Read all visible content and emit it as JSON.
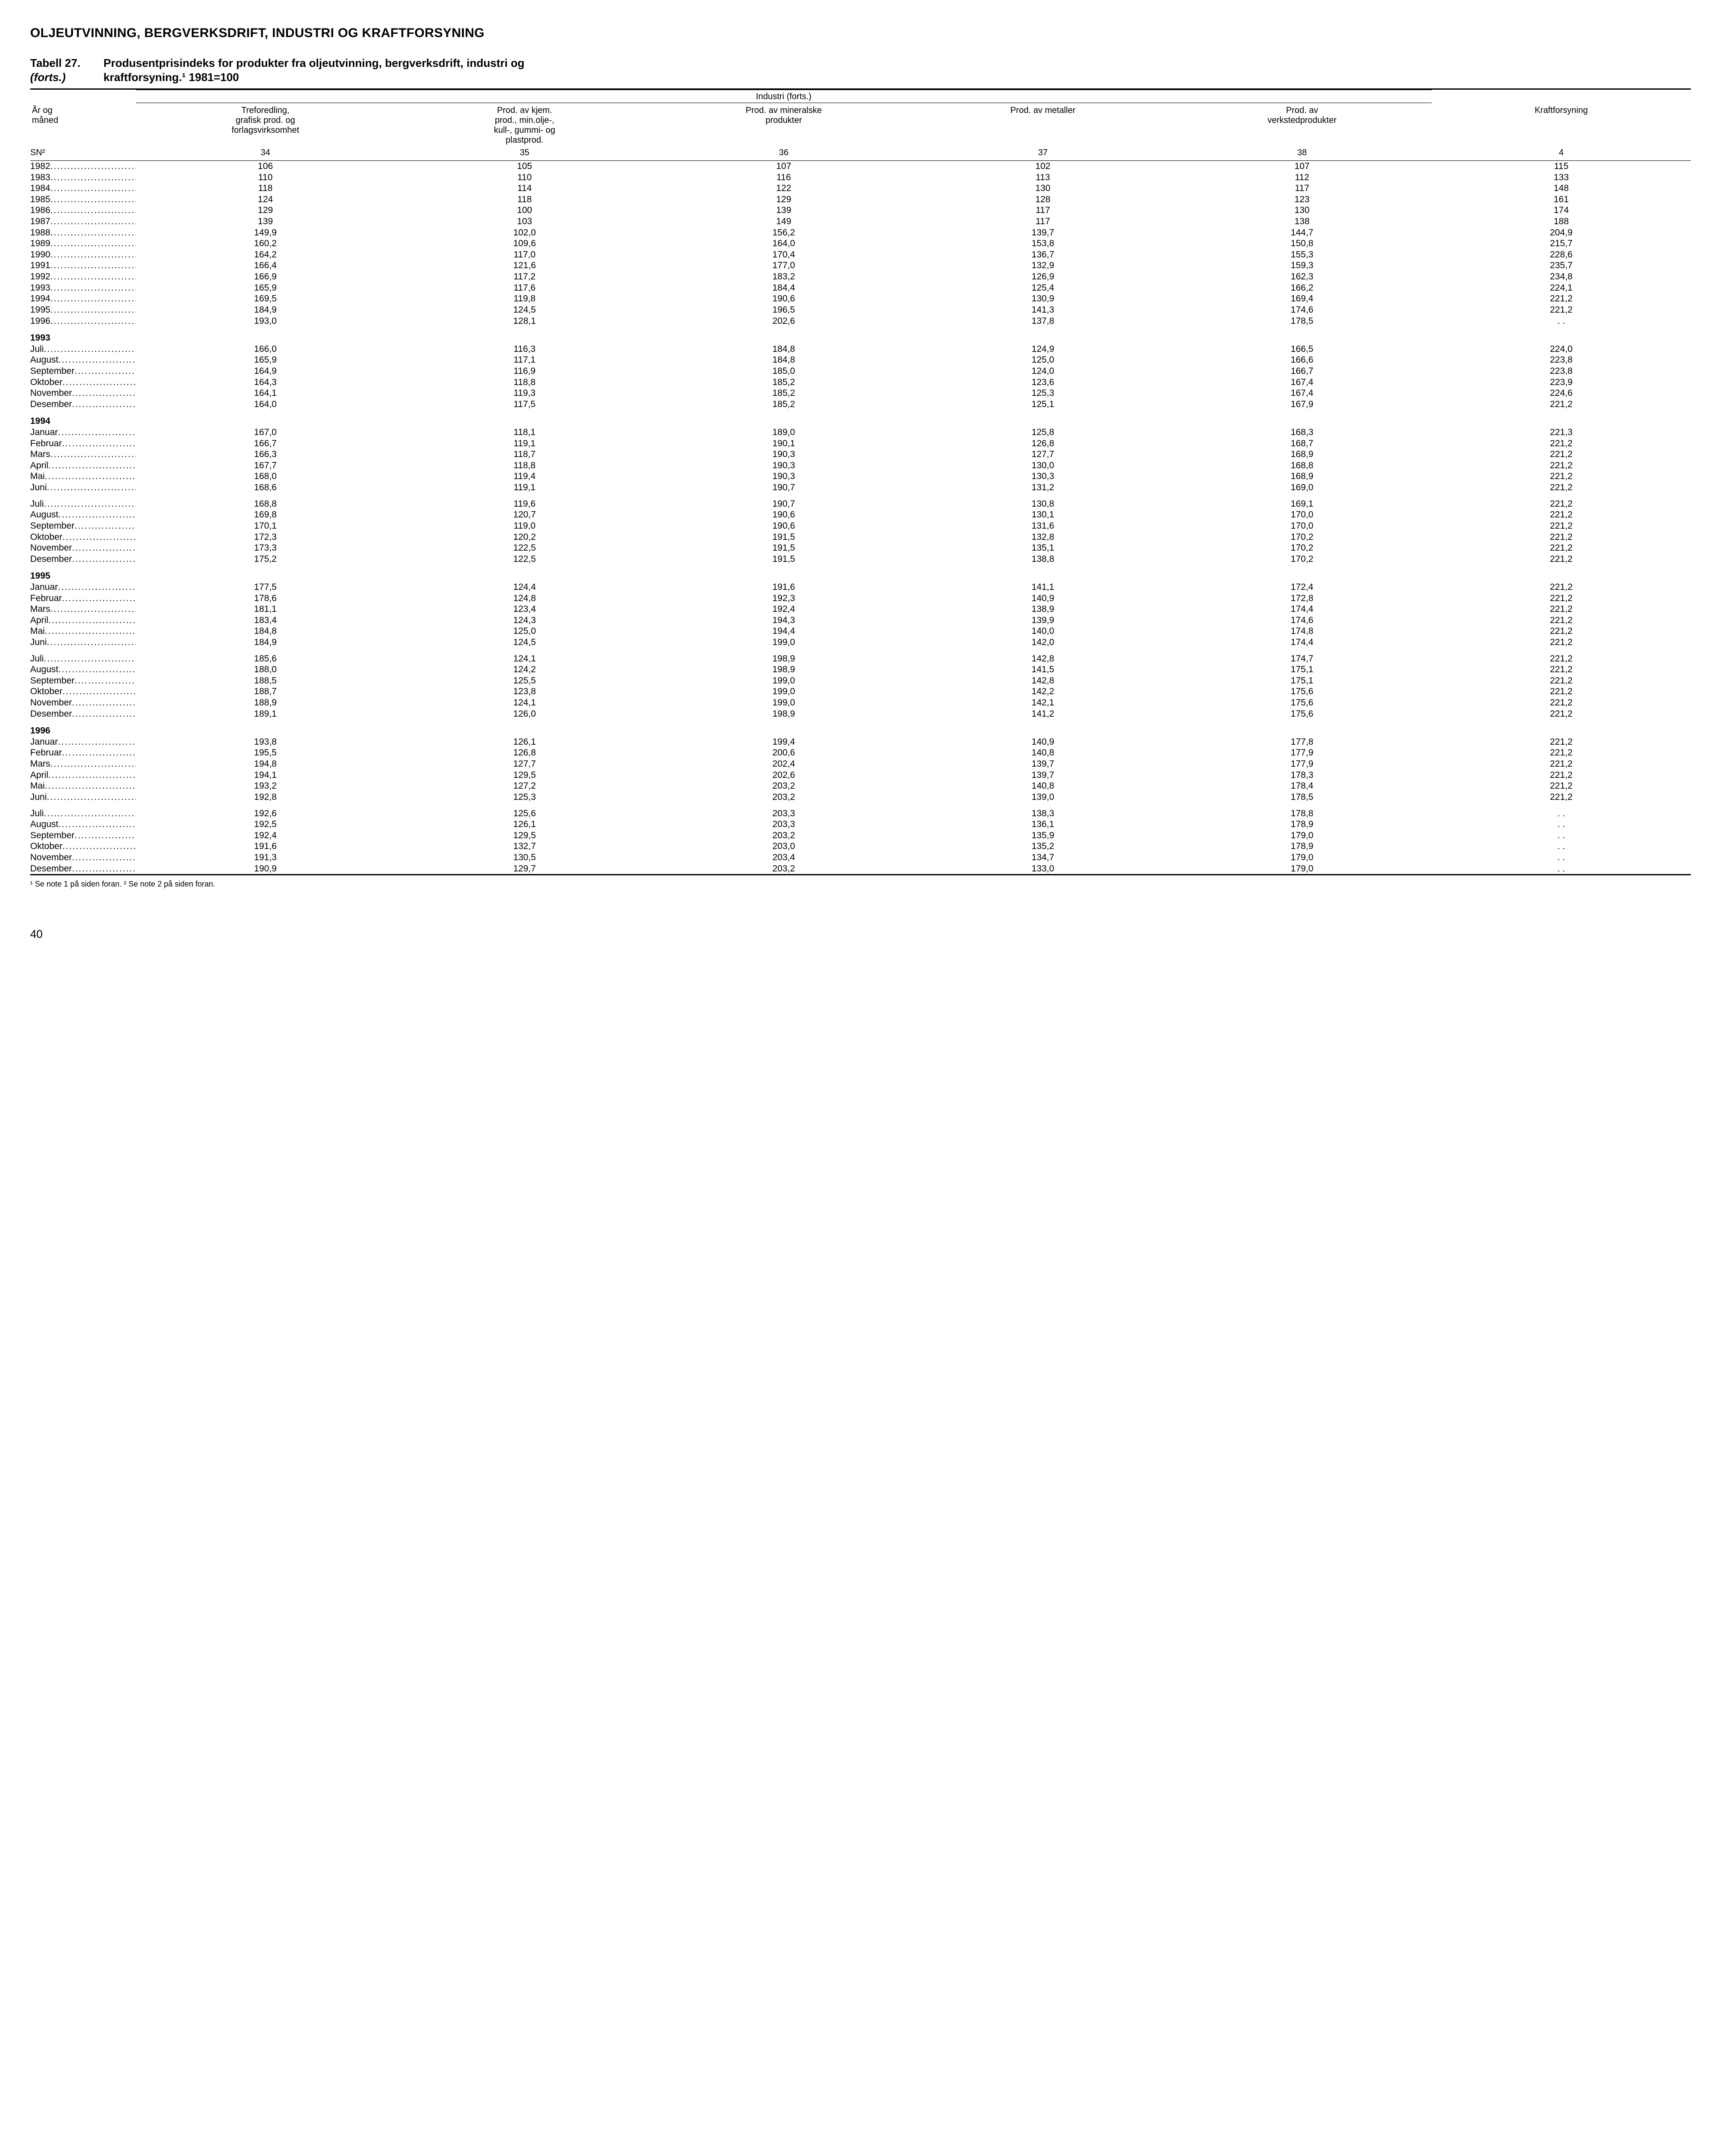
{
  "heading": "OLJEUTVINNING, BERGVERKSDRIFT, INDUSTRI OG KRAFTFORSYNING",
  "caption": {
    "number": "Tabell 27.",
    "cont": "(forts.)",
    "title_line1": "Produsentprisindeks for produkter fra oljeutvinning, bergverksdrift, industri og",
    "title_line2": "kraftforsyning.¹ 1981=100"
  },
  "span_header": "Industri (forts.)",
  "stub_label_line1": "År og",
  "stub_label_line2": "måned",
  "columns": [
    {
      "h1": "Treforedling,",
      "h2": "grafisk prod. og",
      "h3": "forlagsvirksomhet",
      "sn": "34"
    },
    {
      "h1": "Prod. av kjem.",
      "h2": "prod., min.olje-,",
      "h3": "kull-, gummi- og",
      "h4": "plastprod.",
      "sn": "35"
    },
    {
      "h1": "Prod. av mineralske",
      "h2": "produkter",
      "sn": "36"
    },
    {
      "h1": "Prod. av metaller",
      "sn": "37"
    },
    {
      "h1": "Prod. av",
      "h2": "verkstedprodukter",
      "sn": "38"
    },
    {
      "h1": "Kraftforsyning",
      "sn": "4"
    }
  ],
  "sn_label": "SN²",
  "groups": [
    {
      "rows": [
        {
          "label": "1982",
          "v": [
            "106",
            "105",
            "107",
            "102",
            "107",
            "115"
          ]
        },
        {
          "label": "1983",
          "v": [
            "110",
            "110",
            "116",
            "113",
            "112",
            "133"
          ]
        },
        {
          "label": "1984",
          "v": [
            "118",
            "114",
            "122",
            "130",
            "117",
            "148"
          ]
        },
        {
          "label": "1985",
          "v": [
            "124",
            "118",
            "129",
            "128",
            "123",
            "161"
          ]
        },
        {
          "label": "1986",
          "v": [
            "129",
            "100",
            "139",
            "117",
            "130",
            "174"
          ]
        },
        {
          "label": "1987",
          "v": [
            "139",
            "103",
            "149",
            "117",
            "138",
            "188"
          ]
        },
        {
          "label": "1988",
          "v": [
            "149,9",
            "102,0",
            "156,2",
            "139,7",
            "144,7",
            "204,9"
          ]
        },
        {
          "label": "1989",
          "v": [
            "160,2",
            "109,6",
            "164,0",
            "153,8",
            "150,8",
            "215,7"
          ]
        },
        {
          "label": "1990",
          "v": [
            "164,2",
            "117,0",
            "170,4",
            "136,7",
            "155,3",
            "228,6"
          ]
        },
        {
          "label": "1991",
          "v": [
            "166,4",
            "121,6",
            "177,0",
            "132,9",
            "159,3",
            "235,7"
          ]
        },
        {
          "label": "1992",
          "v": [
            "166,9",
            "117,2",
            "183,2",
            "126,9",
            "162,3",
            "234,8"
          ]
        },
        {
          "label": "1993",
          "v": [
            "165,9",
            "117,6",
            "184,4",
            "125,4",
            "166,2",
            "224,1"
          ]
        },
        {
          "label": "1994",
          "v": [
            "169,5",
            "119,8",
            "190,6",
            "130,9",
            "169,4",
            "221,2"
          ]
        },
        {
          "label": "1995",
          "v": [
            "184,9",
            "124,5",
            "196,5",
            "141,3",
            "174,6",
            "221,2"
          ]
        },
        {
          "label": "1996",
          "v": [
            "193,0",
            "128,1",
            "202,6",
            "137,8",
            "178,5",
            ". ."
          ]
        }
      ]
    },
    {
      "title": "1993",
      "rows": [
        {
          "label": "Juli",
          "v": [
            "166,0",
            "116,3",
            "184,8",
            "124,9",
            "166,5",
            "224,0"
          ]
        },
        {
          "label": "August",
          "v": [
            "165,9",
            "117,1",
            "184,8",
            "125,0",
            "166,6",
            "223,8"
          ]
        },
        {
          "label": "September",
          "v": [
            "164,9",
            "116,9",
            "185,0",
            "124,0",
            "166,7",
            "223,8"
          ]
        },
        {
          "label": "Oktober",
          "v": [
            "164,3",
            "118,8",
            "185,2",
            "123,6",
            "167,4",
            "223,9"
          ]
        },
        {
          "label": "November",
          "v": [
            "164,1",
            "119,3",
            "185,2",
            "125,3",
            "167,4",
            "224,6"
          ]
        },
        {
          "label": "Desember",
          "v": [
            "164,0",
            "117,5",
            "185,2",
            "125,1",
            "167,9",
            "221,2"
          ]
        }
      ]
    },
    {
      "title": "1994",
      "rows": [
        {
          "label": "Januar",
          "v": [
            "167,0",
            "118,1",
            "189,0",
            "125,8",
            "168,3",
            "221,3"
          ]
        },
        {
          "label": "Februar",
          "v": [
            "166,7",
            "119,1",
            "190,1",
            "126,8",
            "168,7",
            "221,2"
          ]
        },
        {
          "label": "Mars",
          "v": [
            "166,3",
            "118,7",
            "190,3",
            "127,7",
            "168,9",
            "221,2"
          ]
        },
        {
          "label": "April",
          "v": [
            "167,7",
            "118,8",
            "190,3",
            "130,0",
            "168,8",
            "221,2"
          ]
        },
        {
          "label": "Mai",
          "v": [
            "168,0",
            "119,4",
            "190,3",
            "130,3",
            "168,9",
            "221,2"
          ]
        },
        {
          "label": "Juni",
          "v": [
            "168,6",
            "119,1",
            "190,7",
            "131,2",
            "169,0",
            "221,2"
          ]
        }
      ]
    },
    {
      "rows": [
        {
          "label": "Juli",
          "v": [
            "168,8",
            "119,6",
            "190,7",
            "130,8",
            "169,1",
            "221,2"
          ]
        },
        {
          "label": "August",
          "v": [
            "169,8",
            "120,7",
            "190,6",
            "130,1",
            "170,0",
            "221,2"
          ]
        },
        {
          "label": "September",
          "v": [
            "170,1",
            "119,0",
            "190,6",
            "131,6",
            "170,0",
            "221,2"
          ]
        },
        {
          "label": "Oktober",
          "v": [
            "172,3",
            "120,2",
            "191,5",
            "132,8",
            "170,2",
            "221,2"
          ]
        },
        {
          "label": "November",
          "v": [
            "173,3",
            "122,5",
            "191,5",
            "135,1",
            "170,2",
            "221,2"
          ]
        },
        {
          "label": "Desember",
          "v": [
            "175,2",
            "122,5",
            "191,5",
            "138,8",
            "170,2",
            "221,2"
          ]
        }
      ]
    },
    {
      "title": "1995",
      "rows": [
        {
          "label": "Januar",
          "v": [
            "177,5",
            "124,4",
            "191,6",
            "141,1",
            "172,4",
            "221,2"
          ]
        },
        {
          "label": "Februar",
          "v": [
            "178,6",
            "124,8",
            "192,3",
            "140,9",
            "172,8",
            "221,2"
          ]
        },
        {
          "label": "Mars",
          "v": [
            "181,1",
            "123,4",
            "192,4",
            "138,9",
            "174,4",
            "221,2"
          ]
        },
        {
          "label": "April",
          "v": [
            "183,4",
            "124,3",
            "194,3",
            "139,9",
            "174,6",
            "221,2"
          ]
        },
        {
          "label": "Mai",
          "v": [
            "184,8",
            "125,0",
            "194,4",
            "140,0",
            "174,8",
            "221,2"
          ]
        },
        {
          "label": "Juni",
          "v": [
            "184,9",
            "124,5",
            "199,0",
            "142,0",
            "174,4",
            "221,2"
          ]
        }
      ]
    },
    {
      "rows": [
        {
          "label": "Juli",
          "v": [
            "185,6",
            "124,1",
            "198,9",
            "142,8",
            "174,7",
            "221,2"
          ]
        },
        {
          "label": "August",
          "v": [
            "188,0",
            "124,2",
            "198,9",
            "141,5",
            "175,1",
            "221,2"
          ]
        },
        {
          "label": "September",
          "v": [
            "188,5",
            "125,5",
            "199,0",
            "142,8",
            "175,1",
            "221,2"
          ]
        },
        {
          "label": "Oktober",
          "v": [
            "188,7",
            "123,8",
            "199,0",
            "142,2",
            "175,6",
            "221,2"
          ]
        },
        {
          "label": "November",
          "v": [
            "188,9",
            "124,1",
            "199,0",
            "142,1",
            "175,6",
            "221,2"
          ]
        },
        {
          "label": "Desember",
          "v": [
            "189,1",
            "126,0",
            "198,9",
            "141,2",
            "175,6",
            "221,2"
          ]
        }
      ]
    },
    {
      "title": "1996",
      "rows": [
        {
          "label": "Januar",
          "v": [
            "193,8",
            "126,1",
            "199,4",
            "140,9",
            "177,8",
            "221,2"
          ]
        },
        {
          "label": "Februar",
          "v": [
            "195,5",
            "126,8",
            "200,6",
            "140,8",
            "177,9",
            "221,2"
          ]
        },
        {
          "label": "Mars",
          "v": [
            "194,8",
            "127,7",
            "202,4",
            "139,7",
            "177,9",
            "221,2"
          ]
        },
        {
          "label": "April",
          "v": [
            "194,1",
            "129,5",
            "202,6",
            "139,7",
            "178,3",
            "221,2"
          ]
        },
        {
          "label": "Mai",
          "v": [
            "193,2",
            "127,2",
            "203,2",
            "140,8",
            "178,4",
            "221,2"
          ]
        },
        {
          "label": "Juni",
          "v": [
            "192,8",
            "125,3",
            "203,2",
            "139,0",
            "178,5",
            "221,2"
          ]
        }
      ]
    },
    {
      "rows": [
        {
          "label": "Juli",
          "v": [
            "192,6",
            "125,6",
            "203,3",
            "138,3",
            "178,8",
            ". ."
          ]
        },
        {
          "label": "August",
          "v": [
            "192,5",
            "126,1",
            "203,3",
            "136,1",
            "178,9",
            ". ."
          ]
        },
        {
          "label": "September",
          "v": [
            "192,4",
            "129,5",
            "203,2",
            "135,9",
            "179,0",
            ". ."
          ]
        },
        {
          "label": "Oktober",
          "v": [
            "191,6",
            "132,7",
            "203,0",
            "135,2",
            "178,9",
            ". ."
          ]
        },
        {
          "label": "November",
          "v": [
            "191,3",
            "130,5",
            "203,4",
            "134,7",
            "179,0",
            ". ."
          ]
        },
        {
          "label": "Desember",
          "v": [
            "190,9",
            "129,7",
            "203,2",
            "133,0",
            "179,0",
            ". ."
          ]
        }
      ]
    }
  ],
  "footnote": "¹ Se note 1 på siden foran. ² Se note 2 på siden foran.",
  "page_number": "40"
}
